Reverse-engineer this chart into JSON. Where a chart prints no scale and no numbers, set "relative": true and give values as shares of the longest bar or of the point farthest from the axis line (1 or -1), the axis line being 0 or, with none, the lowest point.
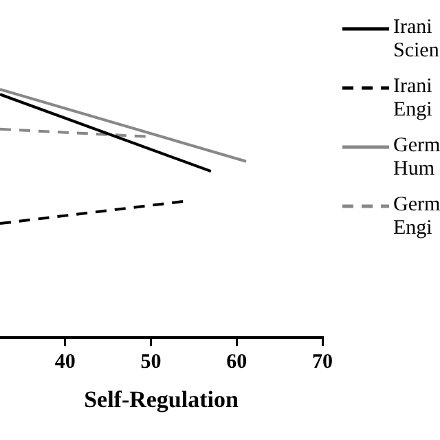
{
  "chart_data": {
    "type": "line",
    "xlabel": "Self-Regulation",
    "relative": true,
    "xlim": [
      32.4,
      70
    ],
    "xticks": [
      40,
      50,
      60,
      70
    ],
    "grid": false,
    "legend": "right",
    "marker": "none",
    "series": [
      {
        "name": "Irani\nScien",
        "color": "#000000",
        "line_style": "solid",
        "x": [
          32.4,
          57.0
        ],
        "values": [
          0.98,
          0.67
        ]
      },
      {
        "name": "Irani\nEngi",
        "color": "#000000",
        "line_style": "dashed",
        "x": [
          32.4,
          54.1
        ],
        "values": [
          0.46,
          0.55
        ]
      },
      {
        "name": "Germ\nHum",
        "color": "#888888",
        "line_style": "solid",
        "x": [
          32.4,
          61.1
        ],
        "values": [
          1,
          0.71
        ]
      },
      {
        "name": "Germ\nEngi",
        "color": "#888888",
        "line_style": "dashed",
        "x": [
          32.4,
          49.5
        ],
        "values": [
          0.84,
          0.81
        ]
      }
    ]
  }
}
